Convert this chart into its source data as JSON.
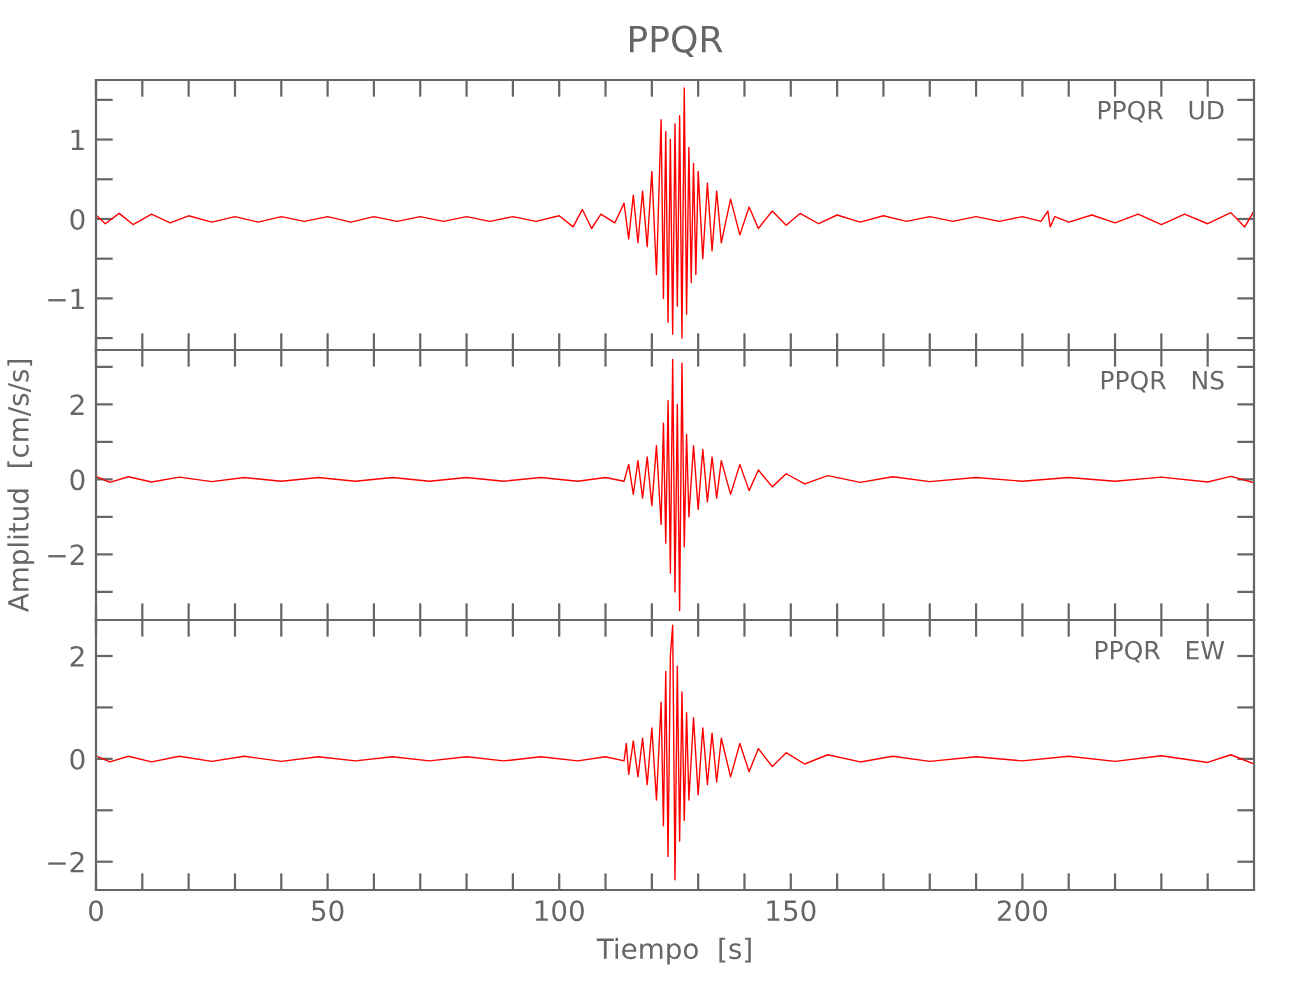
{
  "chart_data": [
    {
      "type": "line",
      "title": "PPQR",
      "annotations": [
        "PPQR   UD"
      ],
      "xlim": [
        0,
        250
      ],
      "ylim": [
        -1.65,
        1.75
      ],
      "tick_labels": "y",
      "grid": false,
      "xticks": [
        0,
        {
          "value": 10,
          "label": null
        },
        {
          "value": 20,
          "label": null
        },
        {
          "value": 30,
          "label": null
        },
        {
          "value": 40,
          "label": null
        },
        50,
        {
          "value": 60,
          "label": null
        },
        {
          "value": 70,
          "label": null
        },
        {
          "value": 80,
          "label": null
        },
        {
          "value": 90,
          "label": null
        },
        100,
        {
          "value": 110,
          "label": null
        },
        {
          "value": 120,
          "label": null
        },
        {
          "value": 130,
          "label": null
        },
        {
          "value": 140,
          "label": null
        },
        150,
        {
          "value": 160,
          "label": null
        },
        {
          "value": 170,
          "label": null
        },
        {
          "value": 180,
          "label": null
        },
        {
          "value": 190,
          "label": null
        },
        200,
        {
          "value": 210,
          "label": null
        },
        {
          "value": 220,
          "label": null
        },
        {
          "value": 230,
          "label": null
        },
        {
          "value": 240,
          "label": null
        }
      ],
      "yticks": [
        {
          "value": -1.5,
          "label": null
        },
        {
          "value": -1,
          "label": "−1"
        },
        {
          "value": -0.5,
          "label": null
        },
        0,
        {
          "value": 0.5,
          "label": null
        },
        1,
        {
          "value": 1.5,
          "label": null
        }
      ],
      "series": [
        {
          "color": "#ff0000",
          "x": [
            0,
            2,
            5,
            8,
            12,
            16,
            20,
            25,
            30,
            35,
            40,
            45,
            50,
            55,
            60,
            65,
            70,
            75,
            80,
            85,
            90,
            95,
            100,
            103,
            105,
            107,
            109,
            112,
            114,
            115,
            116,
            117,
            118,
            119,
            120,
            121,
            122,
            122.5,
            123,
            123.5,
            124,
            124.5,
            125,
            125.5,
            126,
            126.5,
            127,
            127.5,
            128,
            128.5,
            129,
            129.5,
            130,
            131,
            132,
            133,
            134,
            135,
            137,
            139,
            141,
            143,
            146,
            149,
            152,
            156,
            160,
            165,
            170,
            175,
            180,
            185,
            190,
            195,
            200,
            204,
            205.5,
            206,
            207,
            210,
            215,
            220,
            225,
            230,
            235,
            240,
            245,
            248,
            250
          ],
          "values": [
            0.05,
            -0.06,
            0.07,
            -0.07,
            0.06,
            -0.05,
            0.04,
            -0.04,
            0.03,
            -0.04,
            0.03,
            -0.03,
            0.03,
            -0.04,
            0.03,
            -0.03,
            0.03,
            -0.03,
            0.03,
            -0.03,
            0.03,
            -0.03,
            0.04,
            -0.1,
            0.12,
            -0.12,
            0.06,
            -0.05,
            0.2,
            -0.25,
            0.3,
            -0.3,
            0.35,
            -0.35,
            0.6,
            -0.7,
            1.25,
            -1.0,
            1.1,
            -1.3,
            1.0,
            -1.45,
            1.2,
            -1.1,
            1.3,
            -1.5,
            1.65,
            -1.2,
            0.9,
            -0.8,
            0.7,
            -0.7,
            0.6,
            -0.5,
            0.45,
            -0.4,
            0.35,
            -0.3,
            0.25,
            -0.2,
            0.15,
            -0.12,
            0.1,
            -0.08,
            0.07,
            -0.06,
            0.05,
            -0.04,
            0.04,
            -0.03,
            0.03,
            -0.03,
            0.03,
            -0.03,
            0.03,
            -0.03,
            0.1,
            -0.1,
            0.03,
            -0.04,
            0.05,
            -0.05,
            0.06,
            -0.07,
            0.06,
            -0.06,
            0.08,
            -0.1,
            0.1
          ]
        }
      ]
    },
    {
      "type": "line",
      "ylabel": "Amplitud  [cm/s/s]",
      "annotations": [
        "PPQR   NS"
      ],
      "xlim": [
        0,
        250
      ],
      "ylim": [
        -3.75,
        3.45
      ],
      "tick_labels": "y",
      "grid": false,
      "xticks": [
        0,
        {
          "value": 10,
          "label": null
        },
        {
          "value": 20,
          "label": null
        },
        {
          "value": 30,
          "label": null
        },
        {
          "value": 40,
          "label": null
        },
        50,
        {
          "value": 60,
          "label": null
        },
        {
          "value": 70,
          "label": null
        },
        {
          "value": 80,
          "label": null
        },
        {
          "value": 90,
          "label": null
        },
        100,
        {
          "value": 110,
          "label": null
        },
        {
          "value": 120,
          "label": null
        },
        {
          "value": 130,
          "label": null
        },
        {
          "value": 140,
          "label": null
        },
        150,
        {
          "value": 160,
          "label": null
        },
        {
          "value": 170,
          "label": null
        },
        {
          "value": 180,
          "label": null
        },
        {
          "value": 190,
          "label": null
        },
        200,
        {
          "value": 210,
          "label": null
        },
        {
          "value": 220,
          "label": null
        },
        {
          "value": 230,
          "label": null
        },
        {
          "value": 240,
          "label": null
        }
      ],
      "yticks": [
        {
          "value": -3,
          "label": null
        },
        {
          "value": -2,
          "label": "−2"
        },
        {
          "value": -1,
          "label": null
        },
        0,
        {
          "value": 1,
          "label": null
        },
        2,
        {
          "value": 3,
          "label": null
        }
      ],
      "series": [
        {
          "color": "#ff0000",
          "x": [
            0,
            3,
            7,
            12,
            18,
            25,
            32,
            40,
            48,
            56,
            64,
            72,
            80,
            88,
            96,
            104,
            110,
            114,
            115,
            116,
            117,
            118,
            119,
            120,
            121,
            122,
            122.5,
            123,
            123.5,
            124,
            124.5,
            125,
            125.5,
            126,
            126.5,
            127,
            127.5,
            128,
            129,
            130,
            131,
            132,
            133,
            134,
            135,
            137,
            139,
            141,
            143,
            146,
            149,
            153,
            158,
            165,
            172,
            180,
            190,
            200,
            210,
            220,
            230,
            240,
            245,
            250
          ],
          "values": [
            0.08,
            -0.08,
            0.07,
            -0.07,
            0.06,
            -0.06,
            0.05,
            -0.05,
            0.05,
            -0.05,
            0.05,
            -0.05,
            0.05,
            -0.05,
            0.05,
            -0.05,
            0.05,
            -0.05,
            0.4,
            -0.4,
            0.5,
            -0.5,
            0.6,
            -0.7,
            0.9,
            -1.2,
            1.5,
            -1.7,
            2.1,
            -2.5,
            3.2,
            -3.0,
            2.0,
            -3.5,
            3.1,
            -1.8,
            1.2,
            -1.0,
            0.9,
            -0.8,
            0.8,
            -0.6,
            0.6,
            -0.5,
            0.5,
            -0.4,
            0.4,
            -0.3,
            0.25,
            -0.2,
            0.15,
            -0.12,
            0.1,
            -0.08,
            0.07,
            -0.06,
            0.05,
            -0.05,
            0.05,
            -0.05,
            0.06,
            -0.07,
            0.08,
            -0.09
          ]
        }
      ]
    },
    {
      "type": "line",
      "xlabel": "Tiempo  [s]",
      "annotations": [
        "PPQR   EW"
      ],
      "xlim": [
        0,
        250
      ],
      "ylim": [
        -2.55,
        2.7
      ],
      "grid": false,
      "xticks": [
        0,
        {
          "value": 10,
          "label": null
        },
        {
          "value": 20,
          "label": null
        },
        {
          "value": 30,
          "label": null
        },
        {
          "value": 40,
          "label": null
        },
        50,
        {
          "value": 60,
          "label": null
        },
        {
          "value": 70,
          "label": null
        },
        {
          "value": 80,
          "label": null
        },
        {
          "value": 90,
          "label": null
        },
        100,
        {
          "value": 110,
          "label": null
        },
        {
          "value": 120,
          "label": null
        },
        {
          "value": 130,
          "label": null
        },
        {
          "value": 140,
          "label": null
        },
        150,
        {
          "value": 160,
          "label": null
        },
        {
          "value": 170,
          "label": null
        },
        {
          "value": 180,
          "label": null
        },
        {
          "value": 190,
          "label": null
        },
        200,
        {
          "value": 210,
          "label": null
        },
        {
          "value": 220,
          "label": null
        },
        {
          "value": 230,
          "label": null
        },
        {
          "value": 240,
          "label": null
        }
      ],
      "yticks": [
        {
          "value": -2,
          "label": "−2"
        },
        {
          "value": -1,
          "label": null
        },
        0,
        {
          "value": 1,
          "label": null
        },
        2
      ],
      "series": [
        {
          "color": "#ff0000",
          "x": [
            0,
            3,
            7,
            12,
            18,
            25,
            32,
            40,
            48,
            56,
            64,
            72,
            80,
            88,
            96,
            104,
            110,
            114,
            114.5,
            115,
            116,
            117,
            118,
            119,
            120,
            121,
            122,
            122.5,
            123,
            123.5,
            124,
            124.5,
            125,
            125.5,
            126,
            126.5,
            127,
            127.5,
            128,
            129,
            130,
            131,
            132,
            133,
            134,
            135,
            137,
            139,
            141,
            143,
            146,
            149,
            153,
            158,
            165,
            172,
            180,
            190,
            200,
            210,
            220,
            230,
            240,
            245,
            250
          ],
          "values": [
            0.06,
            -0.06,
            0.05,
            -0.06,
            0.05,
            -0.05,
            0.05,
            -0.05,
            0.04,
            -0.04,
            0.04,
            -0.04,
            0.04,
            -0.04,
            0.04,
            -0.04,
            0.04,
            -0.04,
            0.3,
            -0.3,
            0.35,
            -0.35,
            0.4,
            -0.5,
            0.6,
            -0.8,
            1.1,
            -1.3,
            1.7,
            -1.9,
            2.0,
            2.6,
            -2.35,
            1.8,
            -1.6,
            1.3,
            -1.2,
            0.9,
            -0.8,
            0.8,
            -0.7,
            0.6,
            -0.5,
            0.5,
            -0.45,
            0.4,
            -0.35,
            0.3,
            -0.25,
            0.2,
            -0.15,
            0.12,
            -0.1,
            0.08,
            -0.06,
            0.05,
            -0.05,
            0.04,
            -0.04,
            0.05,
            -0.05,
            0.06,
            -0.07,
            0.08,
            -0.1
          ]
        }
      ]
    }
  ]
}
